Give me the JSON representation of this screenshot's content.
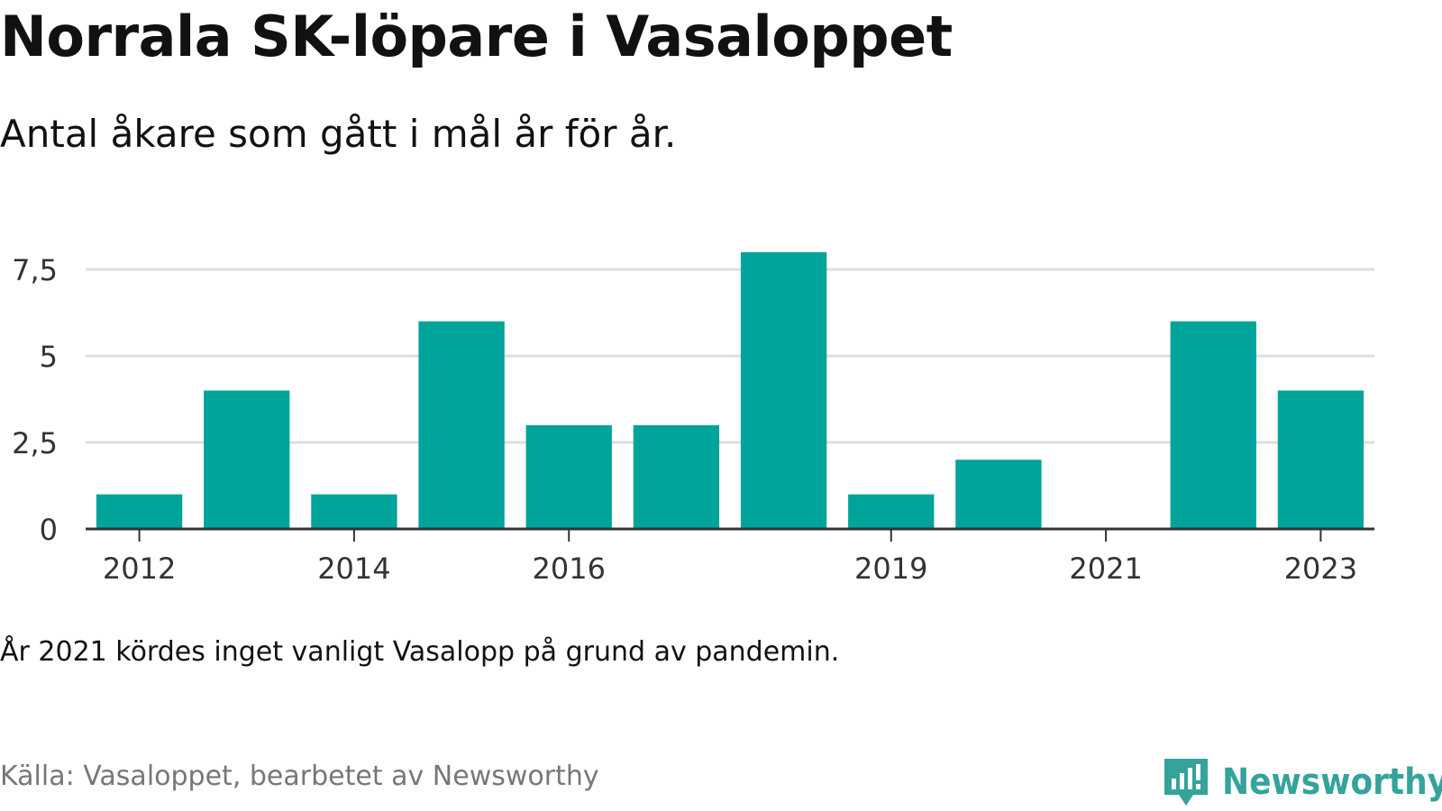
{
  "title": "Norrala SK-löpare i Vasaloppet",
  "subtitle": "Antal åkare som gått i mål år för år.",
  "note": "År 2021 kördes inget vanligt Vasalopp på grund av pandemin.",
  "source": "Källa: Vasaloppet, bearbetet av Newsworthy",
  "logo": {
    "text": "Newsworthy",
    "icon": "bar-chart-speech-icon"
  },
  "colors": {
    "bar": "#00a49a",
    "grid": "#dddddd",
    "axis": "#333333",
    "brand": "#34a39a"
  },
  "chart_data": {
    "type": "bar",
    "categories": [
      "2012",
      "2013",
      "2014",
      "2015",
      "2016",
      "2017",
      "2018",
      "2019",
      "2020",
      "2021",
      "2022",
      "2023"
    ],
    "values": [
      1,
      4,
      1,
      6,
      3,
      3,
      8,
      1,
      2,
      0,
      6,
      4
    ],
    "x_tick_labels": [
      "2012",
      "2014",
      "2016",
      "2019",
      "2021",
      "2023"
    ],
    "y_ticks": [
      0,
      2.5,
      5,
      7.5
    ],
    "y_tick_labels": [
      "0",
      "2,5",
      "5",
      "7,5"
    ],
    "ylim": [
      0,
      8.2
    ],
    "grid": true
  }
}
